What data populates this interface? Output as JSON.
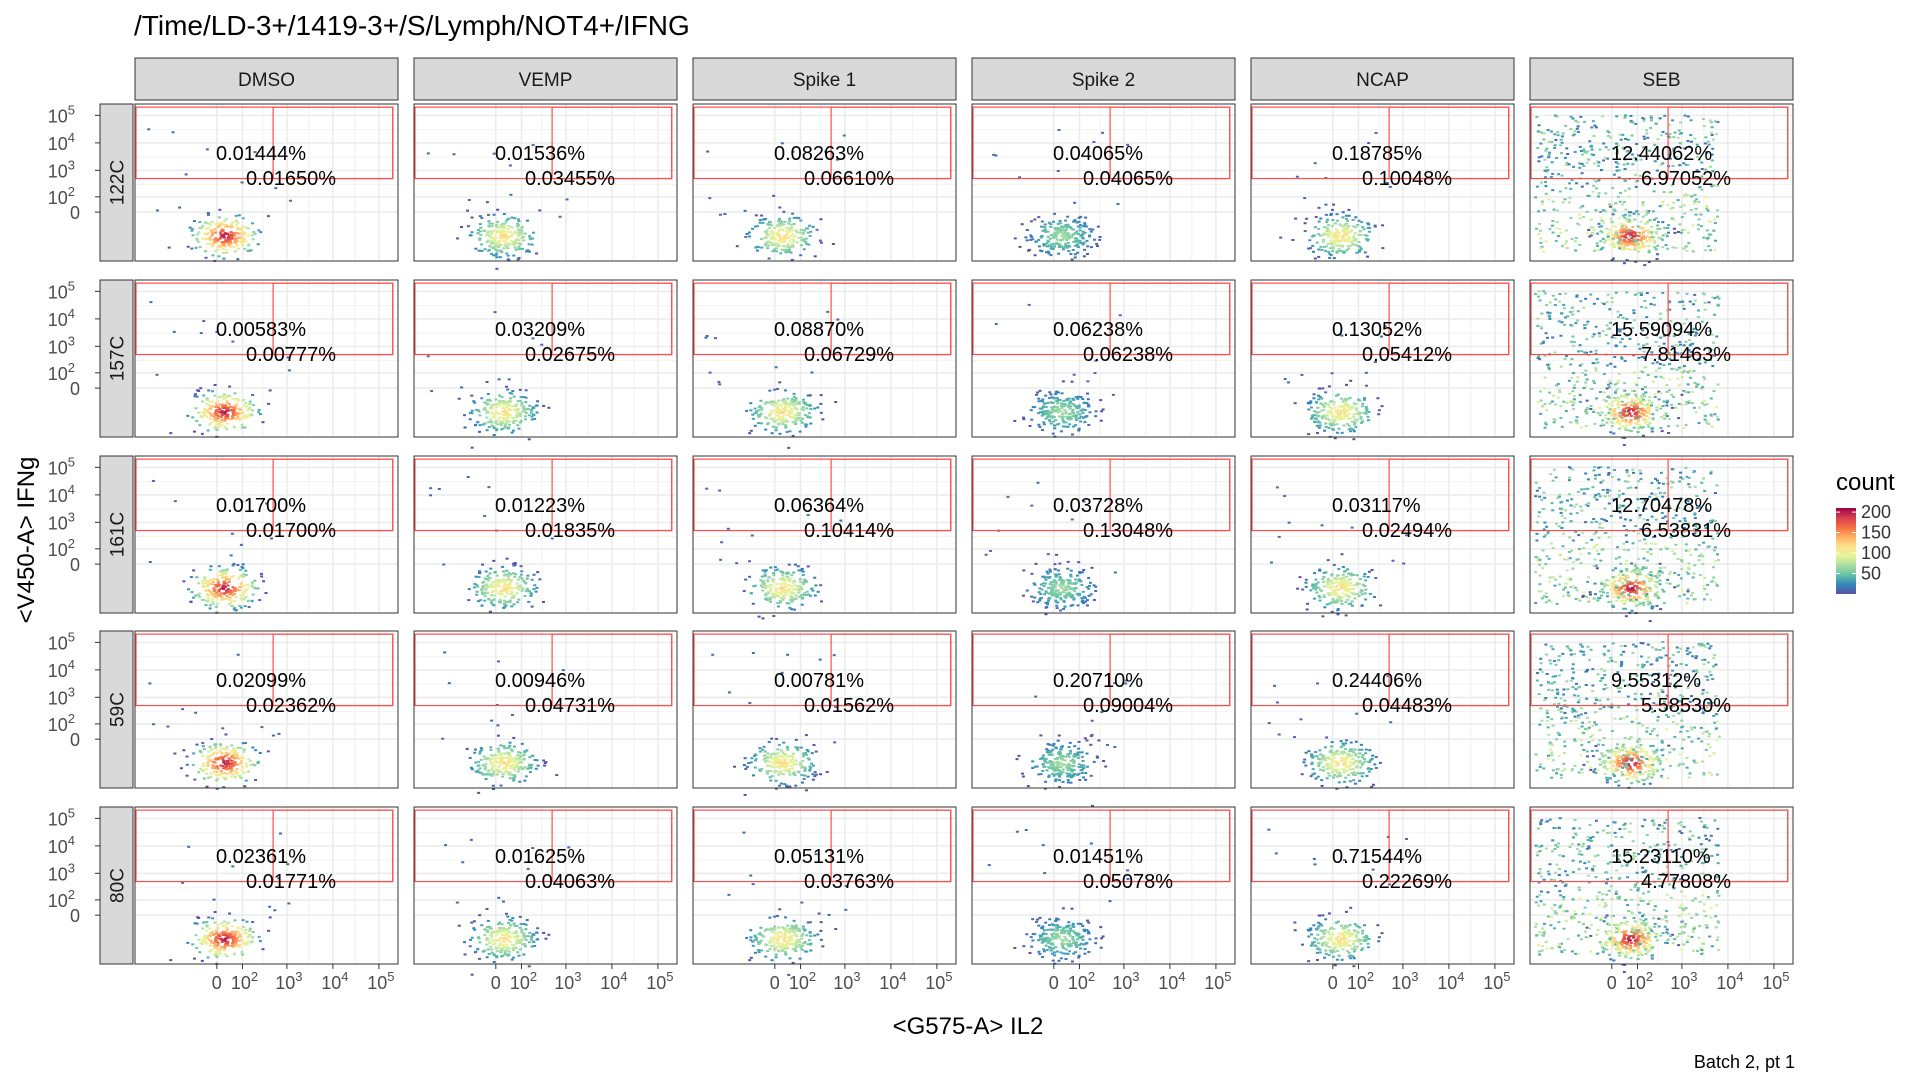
{
  "chart_data": {
    "type": "heatmap",
    "title": "/Time/LD-3+/1419-3+/S/Lymph/NOT4+/IFNG",
    "xlabel": "<G575-A> IL2",
    "ylabel": "<V450-A> IFNg",
    "caption": "Batch 2, pt 1",
    "columns": [
      "DMSO",
      "VEMP",
      "Spike 1",
      "Spike 2",
      "NCAP",
      "SEB"
    ],
    "rows": [
      "122C",
      "157C",
      "161C",
      "59C",
      "80C"
    ],
    "x_ticks": [
      {
        "label": "0",
        "value": 0
      },
      {
        "label": "10",
        "sup": "2",
        "value": 100
      },
      {
        "label": "10",
        "sup": "3",
        "value": 1000
      },
      {
        "label": "10",
        "sup": "4",
        "value": 10000
      },
      {
        "label": "10",
        "sup": "5",
        "value": 100000
      }
    ],
    "y_ticks": [
      {
        "label": "0",
        "value": 0
      },
      {
        "label": "10",
        "sup": "2",
        "value": 100
      },
      {
        "label": "10",
        "sup": "3",
        "value": 1000
      },
      {
        "label": "10",
        "sup": "4",
        "value": 10000
      },
      {
        "label": "10",
        "sup": "5",
        "value": 100000
      }
    ],
    "axis_scale": "biexponential (logicle)",
    "gates": {
      "upper": {
        "x": [
          500,
          200000
        ],
        "y": [
          500,
          200000
        ]
      },
      "full": {
        "x": [
          -1000,
          200000
        ],
        "y": [
          500,
          200000
        ]
      }
    },
    "legend": {
      "title": "count",
      "ticks": [
        50,
        100,
        150,
        200
      ],
      "placement": "right",
      "colors": [
        "#5e4fa2",
        "#3288bd",
        "#66c2a5",
        "#abdda4",
        "#e6f598",
        "#fee08b",
        "#fdae61",
        "#f46d43",
        "#d53e4f",
        "#9e0142"
      ]
    },
    "panels": [
      [
        {
          "p1": "0.01444%",
          "p2": "0.01650%"
        },
        {
          "p1": "0.01536%",
          "p2": "0.03455%"
        },
        {
          "p1": "0.08263%",
          "p2": "0.06610%"
        },
        {
          "p1": "0.04065%",
          "p2": "0.04065%"
        },
        {
          "p1": "0.18785%",
          "p2": "0.10048%"
        },
        {
          "p1": "12.44062%",
          "p2": "6.97052%"
        }
      ],
      [
        {
          "p1": "0.00583%",
          "p2": "0.00777%"
        },
        {
          "p1": "0.03209%",
          "p2": "0.02675%"
        },
        {
          "p1": "0.08870%",
          "p2": "0.06729%"
        },
        {
          "p1": "0.06238%",
          "p2": "0.06238%"
        },
        {
          "p1": "0.13052%",
          "p2": "0.05412%"
        },
        {
          "p1": "15.59094%",
          "p2": "7.81463%"
        }
      ],
      [
        {
          "p1": "0.01700%",
          "p2": "0.01700%"
        },
        {
          "p1": "0.01223%",
          "p2": "0.01835%"
        },
        {
          "p1": "0.06364%",
          "p2": "0.10414%"
        },
        {
          "p1": "0.03728%",
          "p2": "0.13048%"
        },
        {
          "p1": "0.03117%",
          "p2": "0.02494%"
        },
        {
          "p1": "12.70478%",
          "p2": "6.53831%"
        }
      ],
      [
        {
          "p1": "0.02099%",
          "p2": "0.02362%"
        },
        {
          "p1": "0.00946%",
          "p2": "0.04731%"
        },
        {
          "p1": "0.00781%",
          "p2": "0.01562%"
        },
        {
          "p1": "0.20710%",
          "p2": "0.09004%"
        },
        {
          "p1": "0.24406%",
          "p2": "0.04483%"
        },
        {
          "p1": "9.55312%",
          "p2": "5.58530%"
        }
      ],
      [
        {
          "p1": "0.02361%",
          "p2": "0.01771%"
        },
        {
          "p1": "0.01625%",
          "p2": "0.04063%"
        },
        {
          "p1": "0.05131%",
          "p2": "0.03763%"
        },
        {
          "p1": "0.01451%",
          "p2": "0.05078%"
        },
        {
          "p1": "0.71544%",
          "p2": "0.22269%"
        },
        {
          "p1": "15.23110%",
          "p2": "4.77808%"
        }
      ]
    ]
  }
}
